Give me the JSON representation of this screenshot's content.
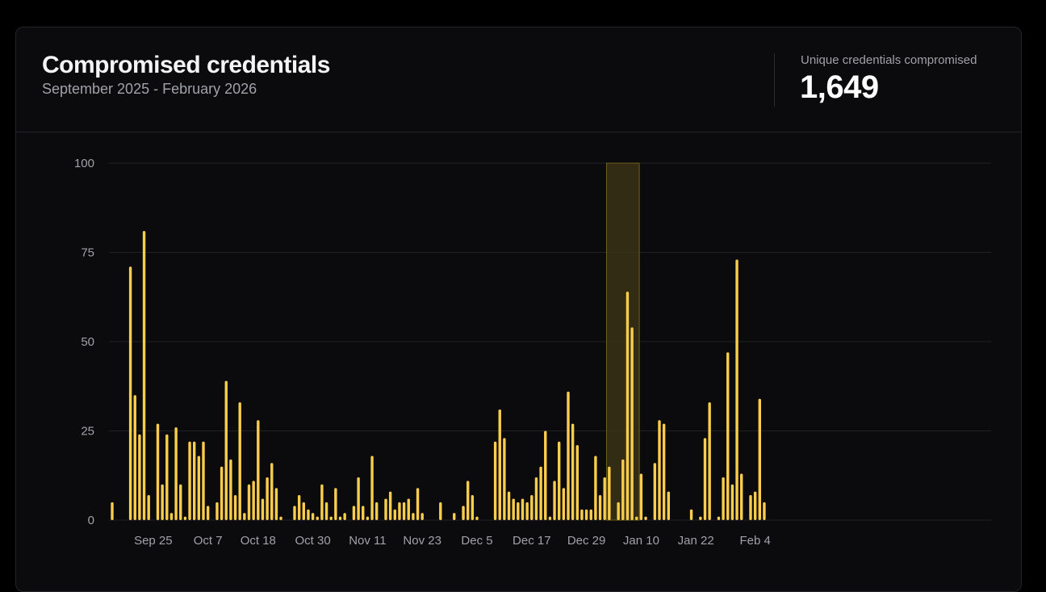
{
  "header": {
    "title": "Compromised credentials",
    "subtitle": "September 2025 - February 2026"
  },
  "stat": {
    "label": "Unique credentials compromised",
    "value": "1,649"
  },
  "colors": {
    "bar": "#fbcd4c",
    "highlight_fill": "#3a3216",
    "highlight_stroke": "#6e6024",
    "grid": "#222226",
    "background": "#0b0b0d"
  },
  "chart_data": {
    "type": "bar",
    "title": "Compromised credentials",
    "ylim": [
      0,
      100
    ],
    "y_ticks": [
      0,
      25,
      50,
      75,
      100
    ],
    "grid": true,
    "x_start": "2025-09-16",
    "x_tick_labels": [
      "Sep 25",
      "Oct 7",
      "Oct 18",
      "Oct 30",
      "Nov 11",
      "Nov 23",
      "Dec 5",
      "Dec 17",
      "Dec 29",
      "Jan 10",
      "Jan 22",
      "Feb 4"
    ],
    "highlight": {
      "from": "2026-01-03",
      "to": "2026-01-09"
    },
    "values": [
      5,
      0,
      0,
      0,
      71,
      35,
      24,
      81,
      7,
      0,
      27,
      10,
      24,
      2,
      26,
      10,
      1,
      22,
      22,
      18,
      22,
      4,
      0,
      5,
      15,
      39,
      17,
      7,
      33,
      2,
      10,
      11,
      28,
      6,
      12,
      16,
      9,
      1,
      0,
      0,
      4,
      7,
      5,
      3,
      2,
      1,
      10,
      5,
      1,
      9,
      1,
      2,
      0,
      4,
      12,
      4,
      1,
      18,
      5,
      0,
      6,
      8,
      3,
      5,
      5,
      6,
      2,
      9,
      2,
      0,
      0,
      0,
      5,
      0,
      0,
      2,
      0,
      4,
      11,
      7,
      1,
      0,
      0,
      0,
      22,
      31,
      23,
      8,
      6,
      5,
      6,
      5,
      7,
      12,
      15,
      25,
      1,
      11,
      22,
      9,
      36,
      27,
      21,
      3,
      3,
      3,
      18,
      7,
      12,
      15,
      0,
      5,
      17,
      64,
      54,
      1,
      13,
      1,
      0,
      16,
      28,
      27,
      8,
      0,
      0,
      0,
      0,
      3,
      0,
      1,
      23,
      33,
      0,
      1,
      12,
      47,
      10,
      73,
      13,
      0,
      7,
      8,
      34,
      5
    ]
  }
}
